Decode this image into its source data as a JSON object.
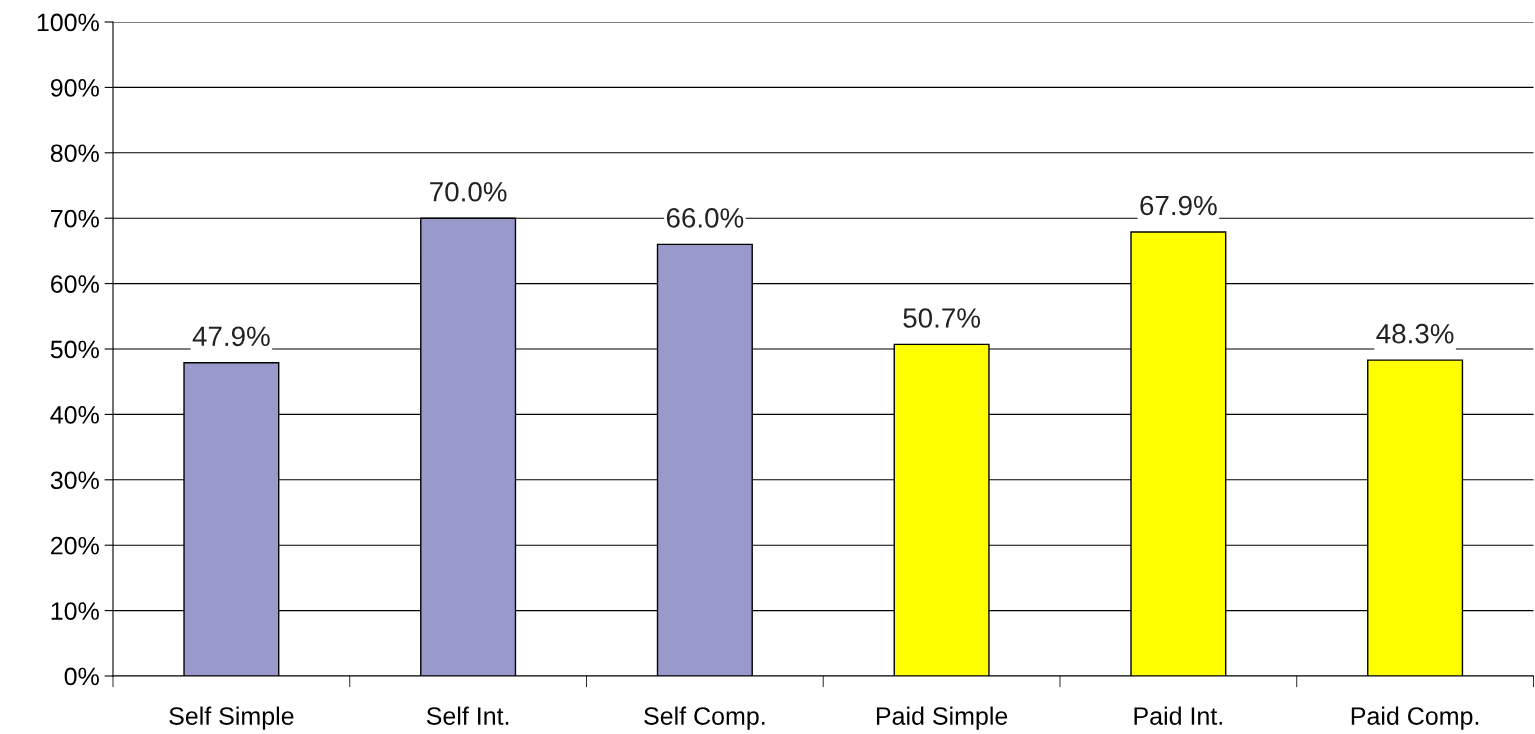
{
  "chart_data": {
    "type": "bar",
    "categories": [
      "Self Simple",
      "Self Int.",
      "Self Comp.",
      "Paid Simple",
      "Paid Int.",
      "Paid Comp."
    ],
    "values": [
      47.9,
      70.0,
      66.0,
      50.7,
      67.9,
      48.3
    ],
    "colors": [
      "#9999cc",
      "#9999cc",
      "#9999cc",
      "#ffff00",
      "#ffff00",
      "#ffff00"
    ],
    "value_labels": [
      "47.9%",
      "70.0%",
      "66.0%",
      "50.7%",
      "67.9%",
      "48.3%"
    ],
    "ylim": [
      0,
      100
    ],
    "yticks": [
      {
        "value": 0,
        "label": "0%"
      },
      {
        "value": 10,
        "label": "10%"
      },
      {
        "value": 20,
        "label": "20%"
      },
      {
        "value": 30,
        "label": "30%"
      },
      {
        "value": 40,
        "label": "40%"
      },
      {
        "value": 50,
        "label": "50%"
      },
      {
        "value": 60,
        "label": "60%"
      },
      {
        "value": 70,
        "label": "70%"
      },
      {
        "value": 80,
        "label": "80%"
      },
      {
        "value": 90,
        "label": "90%"
      },
      {
        "value": 100,
        "label": "100%"
      }
    ],
    "grid": "y"
  }
}
